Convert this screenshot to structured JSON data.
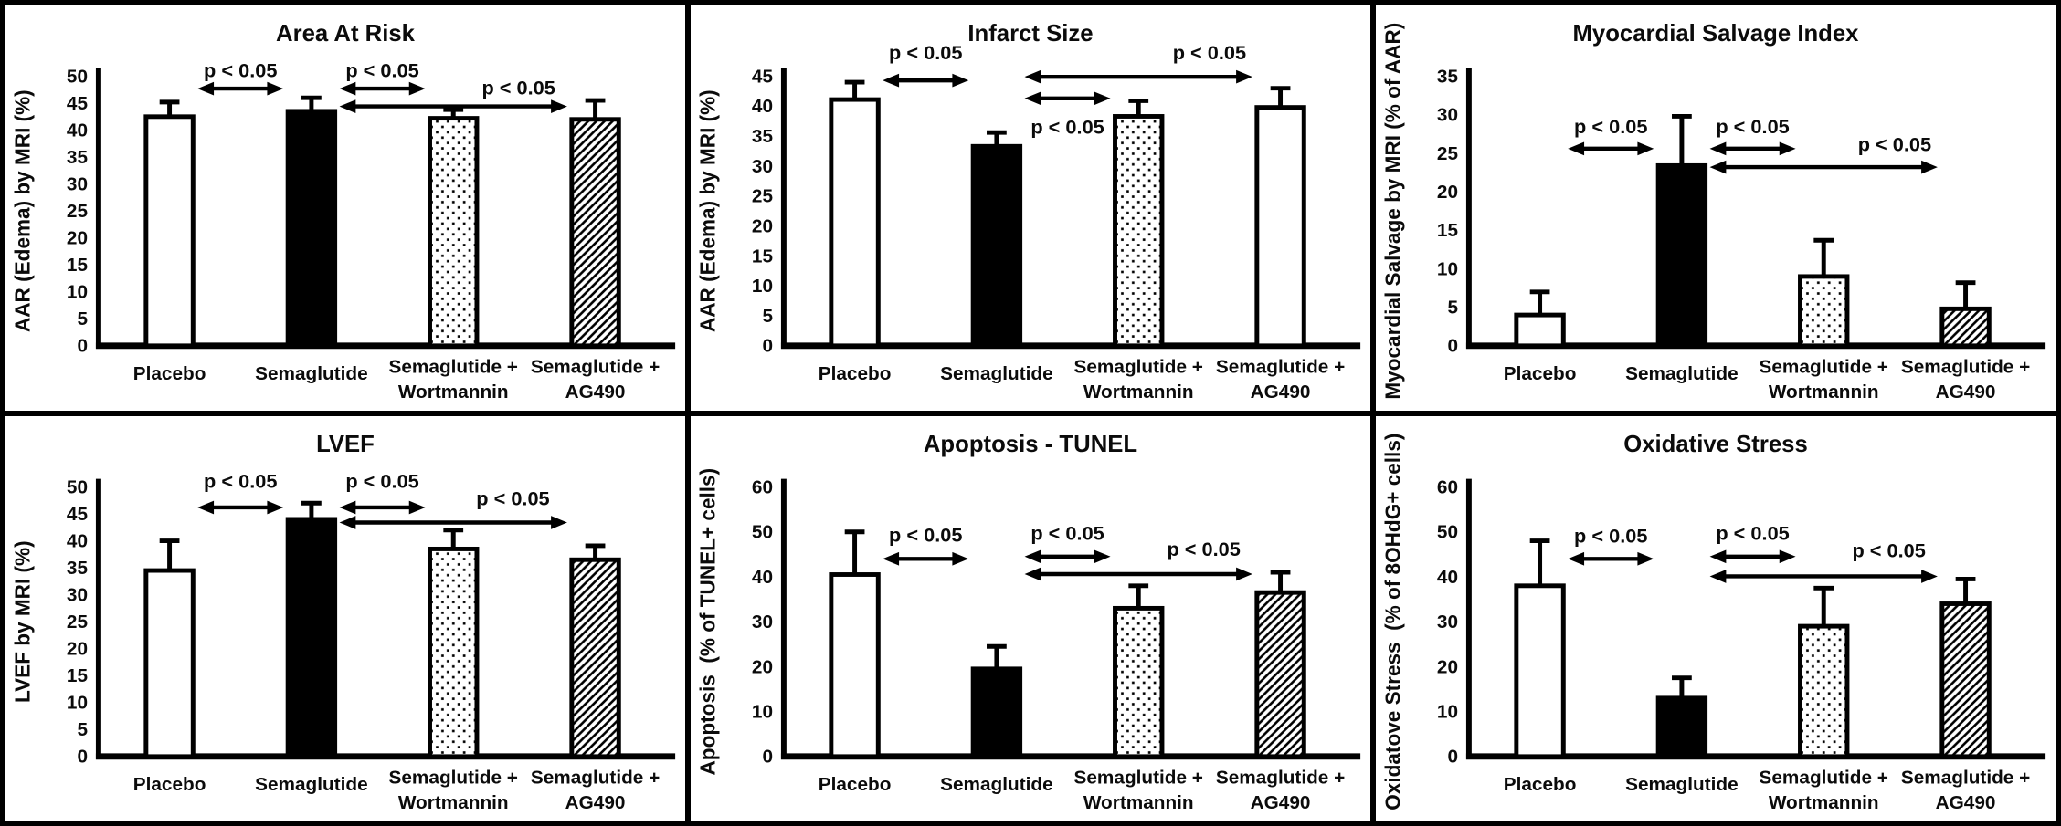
{
  "figure": {
    "background": "#ffffff",
    "grid_line_color": "#000000",
    "bar_outline_color": "#000000",
    "text_color": "#0b0b0b"
  },
  "chart_data": [
    {
      "type": "bar",
      "title": "Area At Risk",
      "ylabel": "AAR (Edema) by MRI (%)",
      "ylim": [
        0,
        50
      ],
      "ystep": 5,
      "grid": false,
      "categories": [
        [
          "Placebo"
        ],
        [
          "Semaglutide"
        ],
        [
          "Semaglutide +",
          "Wortmannin"
        ],
        [
          "Semaglutide +",
          "AG490"
        ]
      ],
      "values": [
        42.5,
        43.5,
        42.2,
        42.0
      ],
      "errors": [
        2.7,
        2.5,
        1.6,
        3.5
      ],
      "fills": [
        "white",
        "black",
        "dots",
        "hatch"
      ],
      "significance": [
        {
          "from": 0,
          "to": 1,
          "y": 47.7,
          "label": "p < 0.05",
          "label_x": 0.25,
          "label_y": 49.8
        },
        {
          "from": 1,
          "to": 2,
          "y": 47.7,
          "label": "p < 0.05",
          "label_x": 0.5,
          "label_y": 49.8
        },
        {
          "from": 1,
          "to": 3,
          "y": 44.4,
          "label": "p < 0.05",
          "label_x": 0.74,
          "label_y": 46.6
        }
      ]
    },
    {
      "type": "bar",
      "title": "Infarct Size",
      "ylabel": "AAR (Edema) by MRI (%)",
      "ylim": [
        0,
        45
      ],
      "ystep": 5,
      "grid": false,
      "categories": [
        [
          "Placebo"
        ],
        [
          "Semaglutide"
        ],
        [
          "Semaglutide +",
          "Wortmannin"
        ],
        [
          "Semaglutide +",
          "AG490"
        ]
      ],
      "values": [
        41.1,
        33.3,
        38.3,
        39.8
      ],
      "errors": [
        2.9,
        2.3,
        2.6,
        3.2
      ],
      "fills": [
        "white",
        "black",
        "dots",
        "white"
      ],
      "significance": [
        {
          "from": 0,
          "to": 1,
          "y": 44.3,
          "label": "p < 0.05",
          "label_x": 0.25,
          "label_y": 47.8
        },
        {
          "from": 1,
          "to": 2,
          "y": 41.3,
          "label": "p < 0.05",
          "label_x": 0.5,
          "label_y": 35.4
        },
        {
          "from": 1,
          "to": 3,
          "y": 44.9,
          "label": "p < 0.05",
          "label_x": 0.75,
          "label_y": 47.8
        }
      ]
    },
    {
      "type": "bar",
      "title": "Myocardial Salvage Index",
      "ylabel": "Myocardial Salvage by MRI (% of AAR)",
      "ylim": [
        0,
        35
      ],
      "ystep": 5,
      "grid": false,
      "categories": [
        [
          "Placebo"
        ],
        [
          "Semaglutide"
        ],
        [
          "Semaglutide +",
          "Wortmannin"
        ],
        [
          "Semaglutide +",
          "AG490"
        ]
      ],
      "values": [
        4.0,
        23.4,
        9.0,
        4.8
      ],
      "errors": [
        3.0,
        6.4,
        4.7,
        3.4
      ],
      "fills": [
        "white",
        "black",
        "dots",
        "hatch"
      ],
      "significance": [
        {
          "from": 0,
          "to": 1,
          "y": 25.6,
          "label": "p < 0.05",
          "label_x": 0.25,
          "label_y": 27.6
        },
        {
          "from": 1,
          "to": 2,
          "y": 25.6,
          "label": "p < 0.05",
          "label_x": 0.5,
          "label_y": 27.6
        },
        {
          "from": 1,
          "to": 3,
          "y": 23.2,
          "label": "p < 0.05",
          "label_x": 0.75,
          "label_y": 25.3
        }
      ]
    },
    {
      "type": "bar",
      "title": "LVEF",
      "ylabel": "LVEF by MRI (%)",
      "ylim": [
        0,
        50
      ],
      "ystep": 5,
      "grid": false,
      "categories": [
        [
          "Placebo"
        ],
        [
          "Semaglutide"
        ],
        [
          "Semaglutide +",
          "Wortmannin"
        ],
        [
          "Semaglutide +",
          "AG490"
        ]
      ],
      "values": [
        34.5,
        44.0,
        38.5,
        36.5
      ],
      "errors": [
        5.5,
        3.0,
        3.5,
        2.6
      ],
      "fills": [
        "white",
        "black",
        "dots",
        "hatch"
      ],
      "significance": [
        {
          "from": 0,
          "to": 1,
          "y": 46.2,
          "label": "p < 0.05",
          "label_x": 0.25,
          "label_y": 49.8
        },
        {
          "from": 1,
          "to": 2,
          "y": 46.2,
          "label": "p < 0.05",
          "label_x": 0.5,
          "label_y": 49.8
        },
        {
          "from": 1,
          "to": 3,
          "y": 43.4,
          "label": "p < 0.05",
          "label_x": 0.73,
          "label_y": 46.6
        }
      ]
    },
    {
      "type": "bar",
      "title": "Apoptosis - TUNEL",
      "ylabel": "Apoptosis  (% of TUNEL+ cells)",
      "ylim": [
        0,
        60
      ],
      "ystep": 10,
      "grid": false,
      "categories": [
        [
          "Placebo"
        ],
        [
          "Semaglutide"
        ],
        [
          "Semaglutide +",
          "Wortmannin"
        ],
        [
          "Semaglutide +",
          "AG490"
        ]
      ],
      "values": [
        40.5,
        19.5,
        33.0,
        36.5
      ],
      "errors": [
        9.5,
        5.0,
        5.0,
        4.5
      ],
      "fills": [
        "white",
        "black",
        "dots",
        "hatch"
      ],
      "significance": [
        {
          "from": 0,
          "to": 1,
          "y": 44.0,
          "label": "p < 0.05",
          "label_x": 0.25,
          "label_y": 47.8
        },
        {
          "from": 1,
          "to": 2,
          "y": 44.5,
          "label": "p < 0.05",
          "label_x": 0.5,
          "label_y": 48.2
        },
        {
          "from": 1,
          "to": 3,
          "y": 40.6,
          "label": "p < 0.05",
          "label_x": 0.74,
          "label_y": 44.7
        }
      ]
    },
    {
      "type": "bar",
      "title": "Oxidative Stress",
      "ylabel": "Oxidatove Stress  (% of 8OHdG+ cells)",
      "ylim": [
        0,
        60
      ],
      "ystep": 10,
      "grid": false,
      "categories": [
        [
          "Placebo"
        ],
        [
          "Semaglutide"
        ],
        [
          "Semaglutide +",
          "Wortmannin"
        ],
        [
          "Semaglutide +",
          "AG490"
        ]
      ],
      "values": [
        38.0,
        13.0,
        29.0,
        34.0
      ],
      "errors": [
        10.0,
        4.5,
        8.5,
        5.5
      ],
      "fills": [
        "white",
        "black",
        "dots",
        "hatch"
      ],
      "significance": [
        {
          "from": 0,
          "to": 1,
          "y": 44.0,
          "label": "p < 0.05",
          "label_x": 0.25,
          "label_y": 47.6
        },
        {
          "from": 1,
          "to": 2,
          "y": 44.5,
          "label": "p < 0.05",
          "label_x": 0.5,
          "label_y": 48.2
        },
        {
          "from": 1,
          "to": 3,
          "y": 40.1,
          "label": "p < 0.05",
          "label_x": 0.74,
          "label_y": 44.4
        }
      ]
    }
  ]
}
